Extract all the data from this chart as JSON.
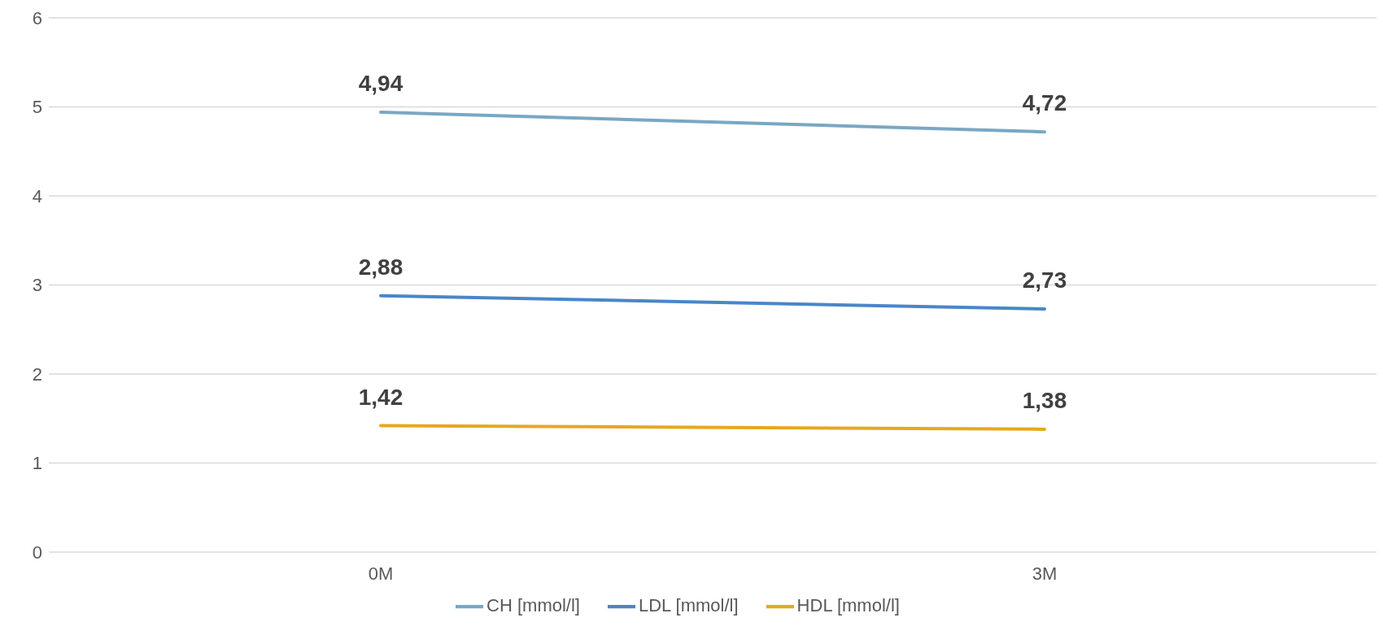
{
  "chart_data": {
    "type": "line",
    "categories": [
      "0M",
      "3M"
    ],
    "series": [
      {
        "name": "CH [mmol/l]",
        "color": "#7aa7c3",
        "values": [
          4.94,
          4.72
        ],
        "value_labels": [
          "4,94",
          "4,72"
        ]
      },
      {
        "name": "LDL [mmol/l]",
        "color": "#4a86c8",
        "values": [
          2.88,
          2.73
        ],
        "value_labels": [
          "2,88",
          "2,73"
        ]
      },
      {
        "name": "HDL [mmol/l]",
        "color": "#e6a81f",
        "values": [
          1.42,
          1.38
        ],
        "value_labels": [
          "1,42",
          "1,38"
        ]
      }
    ],
    "ylim": [
      0,
      6
    ],
    "yticks": [
      0,
      1,
      2,
      3,
      4,
      5,
      6
    ],
    "grid": "y",
    "legend": "bottom",
    "marker": "none",
    "line_style": "solid"
  }
}
